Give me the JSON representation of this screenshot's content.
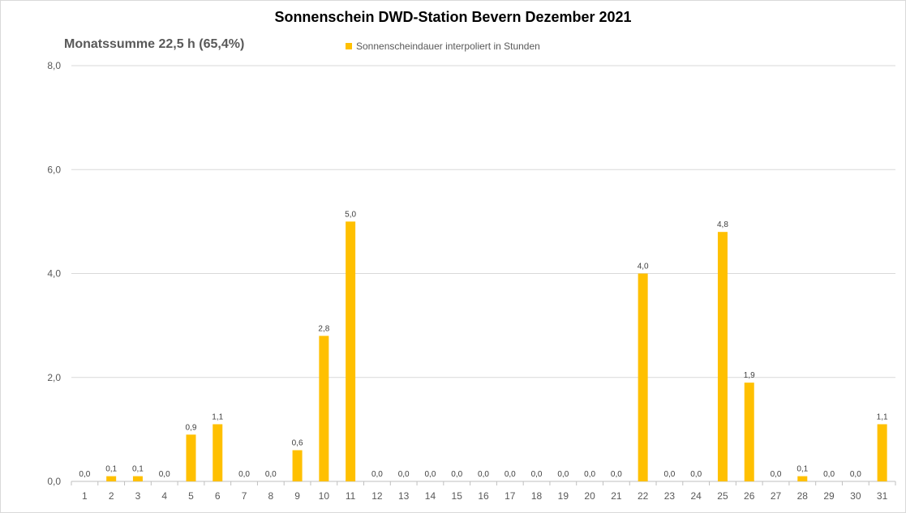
{
  "chart_data": {
    "type": "bar",
    "title": "Sonnenschein  DWD-Station  Bevern Dezember 2021",
    "subtitle": "Monatssumme 22,5 h (65,4%)",
    "legend_position": "top",
    "grid": true,
    "ylim": [
      0,
      8
    ],
    "yticks": [
      "0,0",
      "2,0",
      "4,0",
      "6,0",
      "8,0"
    ],
    "categories": [
      "1",
      "2",
      "3",
      "4",
      "5",
      "6",
      "7",
      "8",
      "9",
      "10",
      "11",
      "12",
      "13",
      "14",
      "15",
      "16",
      "17",
      "18",
      "19",
      "20",
      "21",
      "22",
      "23",
      "24",
      "25",
      "26",
      "27",
      "28",
      "29",
      "30",
      "31"
    ],
    "series": [
      {
        "name": "Sonnenscheindauer interpoliert in Stunden",
        "color": "#FFC000",
        "values": [
          0.0,
          0.1,
          0.1,
          0.0,
          0.9,
          1.1,
          0.0,
          0.0,
          0.6,
          2.8,
          5.0,
          0.0,
          0.0,
          0.0,
          0.0,
          0.0,
          0.0,
          0.0,
          0.0,
          0.0,
          0.0,
          4.0,
          0.0,
          0.0,
          4.8,
          1.9,
          0.0,
          0.1,
          0.0,
          0.0,
          1.1
        ],
        "labels": [
          "0,0",
          "0,1",
          "0,1",
          "0,0",
          "0,9",
          "1,1",
          "0,0",
          "0,0",
          "0,6",
          "2,8",
          "5,0",
          "0,0",
          "0,0",
          "0,0",
          "0,0",
          "0,0",
          "0,0",
          "0,0",
          "0,0",
          "0,0",
          "0,0",
          "4,0",
          "0,0",
          "0,0",
          "4,8",
          "1,9",
          "0,0",
          "0,1",
          "0,0",
          "0,0",
          "1,1"
        ]
      }
    ]
  }
}
